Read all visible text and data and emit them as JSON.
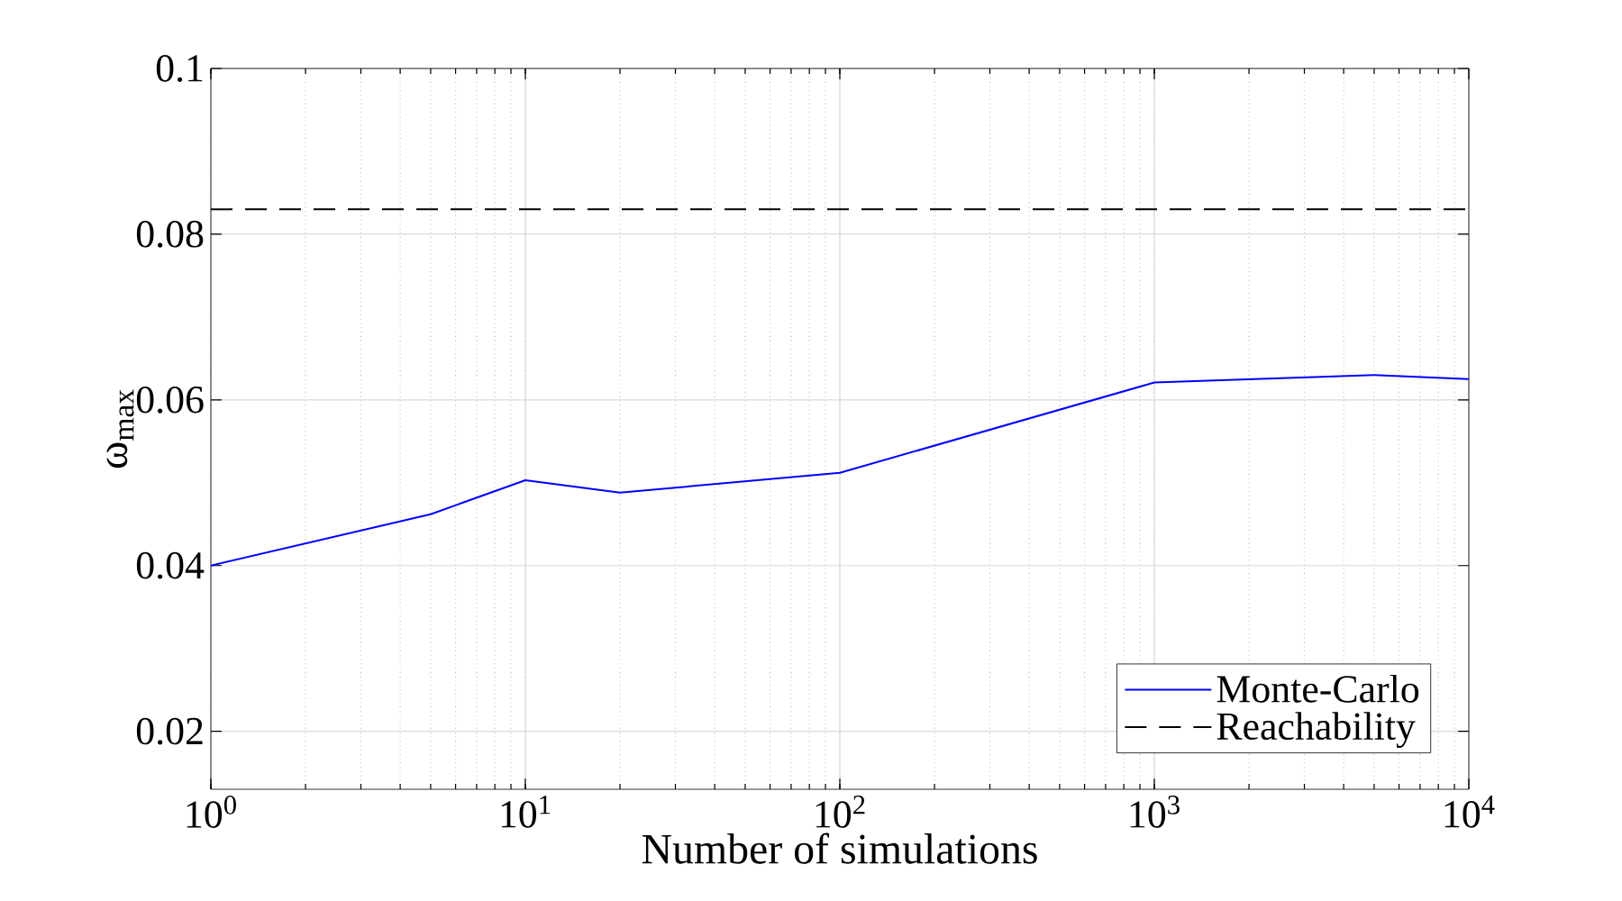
{
  "chart_data": {
    "type": "line",
    "xlabel": "Number of simulations",
    "ylabel": "ω$_{max}$",
    "x": [
      1,
      5,
      10,
      20,
      100,
      1000,
      5000,
      10000
    ],
    "series": [
      {
        "name": "Monte-Carlo",
        "color": "#0000ff",
        "values": [
          0.04,
          0.0462,
          0.0503,
          0.0488,
          0.0512,
          0.0621,
          0.063,
          0.0625
        ]
      },
      {
        "name": "Reachability",
        "color": "#000000",
        "line_style": "dashed",
        "x": [
          1,
          10000
        ],
        "values": [
          0.083,
          0.083
        ]
      }
    ],
    "log": "x",
    "xlim": [
      1,
      10000
    ],
    "ylim": [
      0.013,
      0.1
    ],
    "xticks": [
      {
        "value": 1,
        "label": "10$^{0}$"
      },
      {
        "value": 10,
        "label": "10$^{1}$"
      },
      {
        "value": 100,
        "label": "10$^{2}$"
      },
      {
        "value": 1000,
        "label": "10$^{3}$"
      },
      {
        "value": 10000,
        "label": "10$^{4}$"
      }
    ],
    "yticks": [
      0.02,
      0.04,
      0.06,
      0.08,
      0.1
    ],
    "grid": true,
    "legend": "bottom right",
    "line_style": "solid"
  }
}
